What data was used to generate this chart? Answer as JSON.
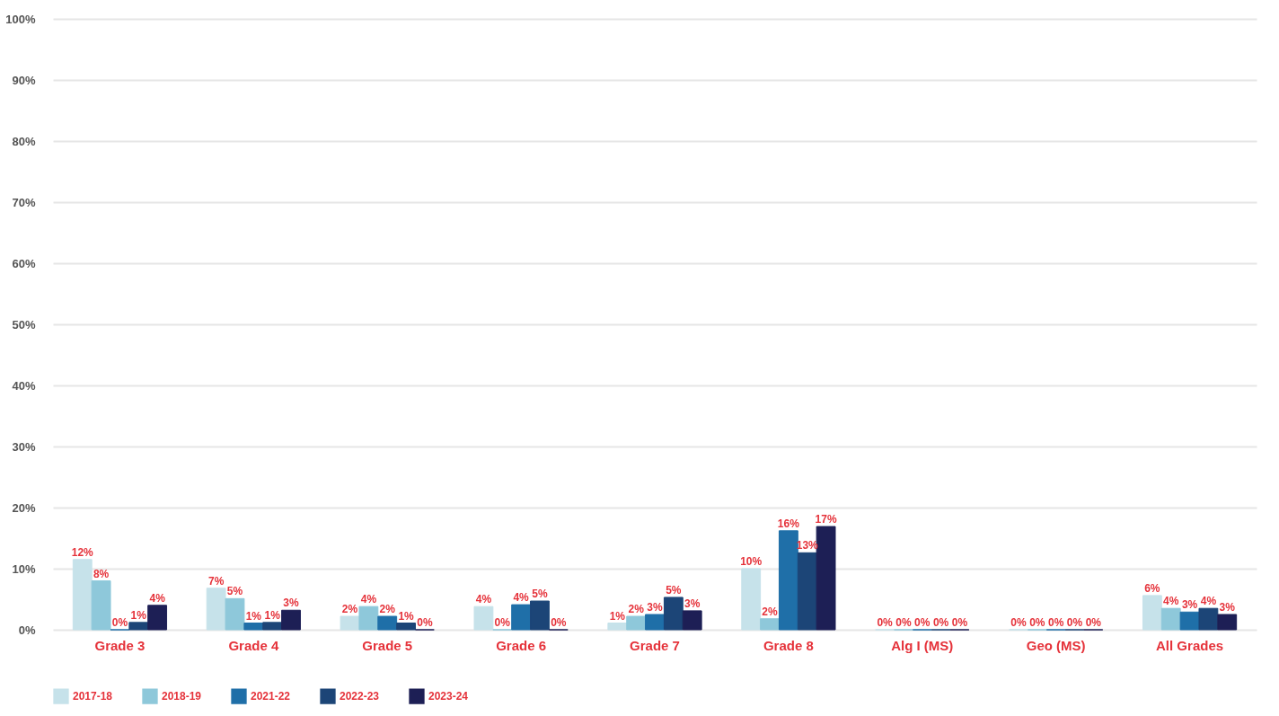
{
  "chart_data": {
    "type": "bar",
    "categories": [
      "Grade 3",
      "Grade 4",
      "Grade 5",
      "Grade 6",
      "Grade 7",
      "Grade 8",
      "Alg I (MS)",
      "Geo (MS)",
      "All Grades"
    ],
    "series": [
      {
        "name": "2017-18",
        "color": "#c6e2ea",
        "values": [
          11.5,
          6.8,
          2.2,
          3.8,
          1.1,
          10,
          0,
          0,
          5.6
        ],
        "value_labels": [
          "12%",
          "7%",
          "2%",
          "4%",
          "1%",
          "10%",
          "0%",
          "0%",
          "6%"
        ]
      },
      {
        "name": "2018-19",
        "color": "#8ec8da",
        "values": [
          8,
          5.1,
          3.8,
          0,
          2.2,
          1.8,
          0,
          0,
          3.5
        ],
        "value_labels": [
          "8%",
          "5%",
          "4%",
          "0%",
          "2%",
          "2%",
          "0%",
          "0%",
          "4%"
        ]
      },
      {
        "name": "2021-22",
        "color": "#1f6fa8",
        "values": [
          0,
          1.1,
          2.2,
          4.1,
          2.5,
          16.2,
          0,
          0,
          2.9
        ],
        "value_labels": [
          "0%",
          "1%",
          "2%",
          "4%",
          "3%",
          "16%",
          "0%",
          "0%",
          "3%"
        ]
      },
      {
        "name": "2022-23",
        "color": "#1c4577",
        "values": [
          1.2,
          1.2,
          1.1,
          4.7,
          5.3,
          12.6,
          0,
          0,
          3.5
        ],
        "value_labels": [
          "1%",
          "1%",
          "1%",
          "5%",
          "5%",
          "13%",
          "0%",
          "0%",
          "4%"
        ]
      },
      {
        "name": "2023-24",
        "color": "#1d1f55",
        "values": [
          4,
          3.2,
          0,
          0,
          3.1,
          16.9,
          0,
          0,
          2.5
        ],
        "value_labels": [
          "4%",
          "3%",
          "0%",
          "0%",
          "3%",
          "17%",
          "0%",
          "0%",
          "3%"
        ]
      }
    ],
    "ylim": [
      0,
      100
    ],
    "yticks": [
      {
        "value": 0,
        "label": "0%"
      },
      {
        "value": 10,
        "label": "10%"
      },
      {
        "value": 20,
        "label": "20%"
      },
      {
        "value": 30,
        "label": "30%"
      },
      {
        "value": 40,
        "label": "40%"
      },
      {
        "value": 50,
        "label": "50%"
      },
      {
        "value": 60,
        "label": "60%"
      },
      {
        "value": 70,
        "label": "70%"
      },
      {
        "value": 80,
        "label": "80%"
      },
      {
        "value": 90,
        "label": "90%"
      },
      {
        "value": 100,
        "label": "100%"
      }
    ],
    "grid": "y",
    "legend": "bottom"
  }
}
